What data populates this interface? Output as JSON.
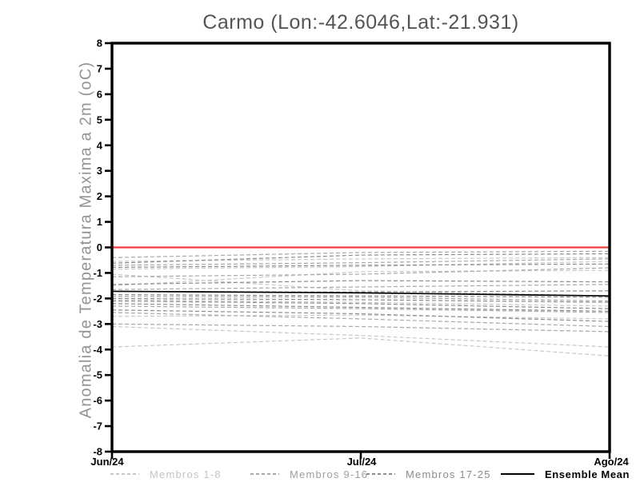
{
  "title": "Carmo (Lon:-42.6046,Lat:-21.931)",
  "axes": {
    "y_label": "Anomalia de Temperatura Maxima a 2m (oC)",
    "y_ticks": [
      "8",
      "7",
      "6",
      "5",
      "4",
      "3",
      "2",
      "1",
      "0",
      "-1",
      "-2",
      "-3",
      "-4",
      "-5",
      "-6",
      "-7",
      "-8"
    ],
    "x_ticks": [
      "Jun/24",
      "Jul/24",
      "Ago/24"
    ]
  },
  "colors": {
    "group1": "#c8c8c8",
    "group2": "#a8a8a8",
    "group3": "#8c8c8c",
    "mean": "#000000",
    "zero_line": "#f23b3b",
    "frame": "#000000",
    "legend_text_group1": "#c4c4c4",
    "legend_text_group2": "#9e9e9e",
    "legend_text_group3": "#8c8c8c"
  },
  "legend": [
    {
      "label": "Membros 1-8",
      "style": "dashed",
      "color": "#c8c8c8",
      "text_color": "#c4c4c4"
    },
    {
      "label": "Membros 9-16",
      "style": "dashed",
      "color": "#a8a8a8",
      "text_color": "#9e9e9e"
    },
    {
      "label": "Membros 17-25",
      "style": "dashed",
      "color": "#8c8c8c",
      "text_color": "#8c8c8c"
    },
    {
      "label": "Ensemble Mean",
      "style": "solid",
      "color": "#000000",
      "text_color": "#000000"
    }
  ],
  "chart_data": {
    "type": "line",
    "title": "Carmo (Lon:-42.6046,Lat:-21.931)",
    "xlabel": "",
    "ylabel": "Anomalia de Temperatura Maxima a 2m (oC)",
    "x": [
      "Jun/24",
      "Jul/24",
      "Ago/24"
    ],
    "ylim": [
      -8,
      8
    ],
    "grid": false,
    "legend_position": "bottom",
    "zero_reference_line": 0,
    "series": [
      {
        "name": "Membro 1",
        "group": 1,
        "values": [
          -0.55,
          -0.45,
          -0.4
        ]
      },
      {
        "name": "Membro 2",
        "group": 1,
        "values": [
          -0.85,
          -0.75,
          -0.55
        ]
      },
      {
        "name": "Membro 3",
        "group": 1,
        "values": [
          -1.5,
          -0.95,
          -0.9
        ]
      },
      {
        "name": "Membro 4",
        "group": 1,
        "values": [
          -1.05,
          -1.7,
          -1.9
        ]
      },
      {
        "name": "Membro 5",
        "group": 1,
        "values": [
          -2.05,
          -2.15,
          -2.3
        ]
      },
      {
        "name": "Membro 6",
        "group": 1,
        "values": [
          -2.7,
          -2.65,
          -2.8
        ]
      },
      {
        "name": "Membro 7",
        "group": 1,
        "values": [
          -3.1,
          -3.45,
          -3.9
        ]
      },
      {
        "name": "Membro 8",
        "group": 1,
        "values": [
          -3.9,
          -3.55,
          -4.25
        ]
      },
      {
        "name": "Membro 9",
        "group": 2,
        "values": [
          -0.4,
          -0.2,
          -0.15
        ]
      },
      {
        "name": "Membro 10",
        "group": 2,
        "values": [
          -0.7,
          -0.6,
          -0.45
        ]
      },
      {
        "name": "Membro 11",
        "group": 2,
        "values": [
          -1.15,
          -1.05,
          -0.8
        ]
      },
      {
        "name": "Membro 12",
        "group": 2,
        "values": [
          -1.65,
          -1.55,
          -1.45
        ]
      },
      {
        "name": "Membro 13",
        "group": 2,
        "values": [
          -1.92,
          -1.95,
          -2.1
        ]
      },
      {
        "name": "Membro 14",
        "group": 2,
        "values": [
          -2.3,
          -2.4,
          -2.55
        ]
      },
      {
        "name": "Membro 15",
        "group": 2,
        "values": [
          -2.55,
          -2.8,
          -3.1
        ]
      },
      {
        "name": "Membro 16",
        "group": 2,
        "values": [
          -3.0,
          -3.1,
          -3.3
        ]
      },
      {
        "name": "Membro 17",
        "group": 3,
        "values": [
          -0.62,
          -0.3,
          -0.25
        ]
      },
      {
        "name": "Membro 18",
        "group": 3,
        "values": [
          -0.78,
          -0.7,
          -0.65
        ]
      },
      {
        "name": "Membro 19",
        "group": 3,
        "values": [
          -1.45,
          -1.3,
          -1.35
        ]
      },
      {
        "name": "Membro 20",
        "group": 3,
        "values": [
          -1.72,
          -1.75,
          -1.7
        ]
      },
      {
        "name": "Membro 21",
        "group": 3,
        "values": [
          -1.85,
          -1.9,
          -1.95
        ]
      },
      {
        "name": "Membro 22",
        "group": 3,
        "values": [
          -2.0,
          -2.05,
          -2.15
        ]
      },
      {
        "name": "Membro 23",
        "group": 3,
        "values": [
          -2.1,
          -2.2,
          -2.4
        ]
      },
      {
        "name": "Membro 24",
        "group": 3,
        "values": [
          -2.2,
          -2.35,
          -2.5
        ]
      },
      {
        "name": "Membro 25",
        "group": 3,
        "values": [
          -2.45,
          -2.6,
          -2.9
        ]
      }
    ],
    "ensemble_mean": {
      "name": "Ensemble Mean",
      "values": [
        -1.72,
        -1.78,
        -1.9
      ]
    }
  }
}
